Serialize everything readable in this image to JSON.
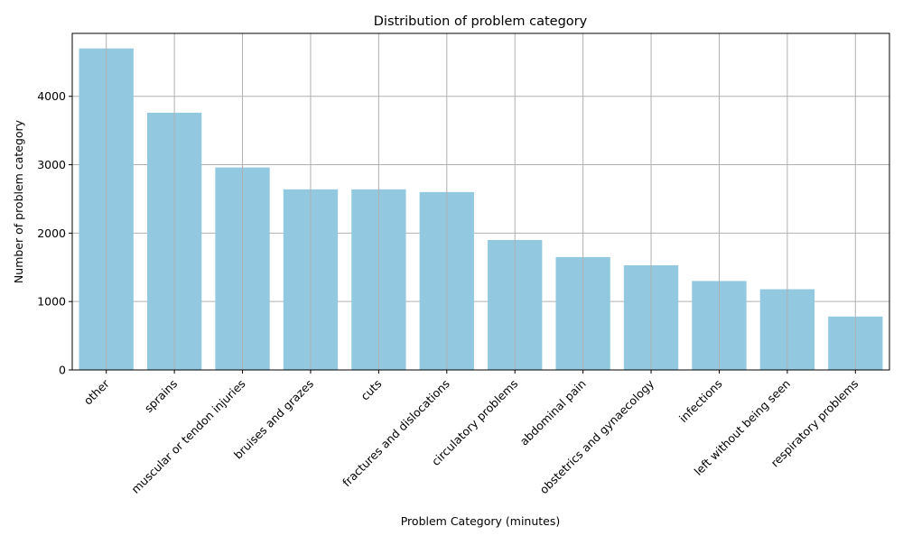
{
  "chart_data": {
    "type": "bar",
    "title": "Distribution of problem category",
    "xlabel": "Problem Category (minutes)",
    "ylabel": "Number of problem category",
    "categories": [
      "other",
      "sprains",
      "muscular or tendon injuries",
      "bruises and grazes",
      "cuts",
      "fractures and dislocations",
      "circulatory problems",
      "abdominal pain",
      "obstetrics and gynaecology",
      "infections",
      "left without being seen",
      "respiratory problems"
    ],
    "values": [
      4700,
      3760,
      2960,
      2640,
      2640,
      2600,
      1900,
      1650,
      1530,
      1300,
      1180,
      780
    ],
    "ylim": [
      0,
      4920
    ],
    "yticks": [
      0,
      1000,
      2000,
      3000,
      4000
    ],
    "grid": true,
    "bar_color": "#92c9e0",
    "grid_color": "#b0b0b0"
  }
}
